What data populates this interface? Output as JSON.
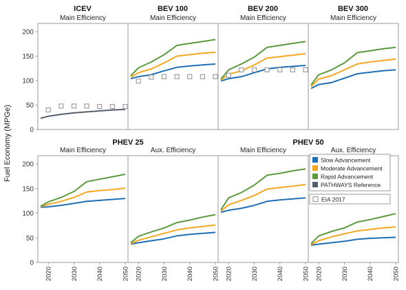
{
  "y_axis_label": "Fuel Economy (MPGe)",
  "colors": {
    "slow": "#1f6fb4",
    "moderate": "#f5a623",
    "rapid": "#5b9a3c",
    "pathways": "#555f6b",
    "eia": "#9e9e9e",
    "border": "#9a9a9a",
    "tick": "#333333"
  },
  "legend": {
    "items": [
      {
        "key": "slow",
        "label": "Slow Advancement"
      },
      {
        "key": "moderate",
        "label": "Moderate Advancement"
      },
      {
        "key": "rapid",
        "label": "Rapid Advancement"
      },
      {
        "key": "pathways",
        "label": "PATHWAYS Reference"
      }
    ],
    "eia_label": "EIA 2017"
  },
  "chart_data": [
    {
      "type": "line",
      "group": "ICEV",
      "subtitle": "Main Efficiency",
      "x": [
        2017,
        2020,
        2025,
        2030,
        2035,
        2040,
        2045,
        2050
      ],
      "ylim": [
        0,
        200
      ],
      "yticks": [
        0,
        50,
        100,
        150,
        200
      ],
      "xticks": [
        2020,
        2030,
        2040,
        2050
      ],
      "series": [
        {
          "key": "pathways",
          "values": [
            23,
            27,
            31,
            34,
            36,
            38,
            40,
            41
          ]
        }
      ],
      "eia": {
        "x": [
          2020,
          2025,
          2030,
          2035,
          2040,
          2045,
          2050
        ],
        "values": [
          40,
          48,
          48,
          48,
          47,
          47,
          47
        ]
      }
    },
    {
      "type": "line",
      "group": "BEV 100",
      "subtitle": "Main Efficiency",
      "x": [
        2017,
        2020,
        2025,
        2030,
        2035,
        2040,
        2045,
        2050
      ],
      "ylim": [
        0,
        200
      ],
      "yticks": [
        0,
        50,
        100,
        150,
        200
      ],
      "xticks": [
        2020,
        2030,
        2040,
        2050
      ],
      "series": [
        {
          "key": "slow",
          "values": [
            104,
            108,
            112,
            120,
            127,
            130,
            132,
            134
          ]
        },
        {
          "key": "moderate",
          "values": [
            107,
            116,
            124,
            136,
            150,
            153,
            156,
            158
          ]
        },
        {
          "key": "rapid",
          "values": [
            110,
            126,
            138,
            153,
            172,
            176,
            180,
            184
          ]
        }
      ],
      "eia": {
        "x": [
          2020,
          2025,
          2030,
          2035,
          2040,
          2045,
          2050
        ],
        "values": [
          99,
          107,
          108,
          108,
          108,
          108,
          108
        ]
      }
    },
    {
      "type": "line",
      "group": "BEV 200",
      "subtitle": "Main Efficiency",
      "x": [
        2017,
        2020,
        2025,
        2030,
        2035,
        2040,
        2045,
        2050
      ],
      "ylim": [
        0,
        200
      ],
      "yticks": [
        0,
        50,
        100,
        150,
        200
      ],
      "xticks": [
        2020,
        2030,
        2040,
        2050
      ],
      "series": [
        {
          "key": "slow",
          "values": [
            99,
            104,
            108,
            116,
            124,
            127,
            129,
            131
          ]
        },
        {
          "key": "moderate",
          "values": [
            101,
            113,
            120,
            132,
            146,
            149,
            152,
            155
          ]
        },
        {
          "key": "rapid",
          "values": [
            103,
            122,
            134,
            148,
            168,
            172,
            176,
            180
          ]
        }
      ],
      "eia": {
        "x": [
          2020,
          2025,
          2030,
          2035,
          2040,
          2045,
          2050
        ],
        "values": [
          111,
          122,
          122,
          122,
          122,
          122,
          122
        ]
      }
    },
    {
      "type": "line",
      "group": "BEV 300",
      "subtitle": "Main Efficiency",
      "x": [
        2017,
        2020,
        2025,
        2030,
        2035,
        2040,
        2045,
        2050
      ],
      "ylim": [
        0,
        200
      ],
      "yticks": [
        0,
        50,
        100,
        150,
        200
      ],
      "xticks": [
        2020,
        2030,
        2040,
        2050
      ],
      "series": [
        {
          "key": "slow",
          "values": [
            84,
            92,
            96,
            105,
            114,
            117,
            120,
            122
          ]
        },
        {
          "key": "moderate",
          "values": [
            88,
            103,
            110,
            122,
            134,
            138,
            141,
            144
          ]
        },
        {
          "key": "rapid",
          "values": [
            91,
            112,
            122,
            136,
            157,
            161,
            165,
            168
          ]
        }
      ]
    },
    {
      "type": "line",
      "group": "PHEV 25",
      "subtitle": "Main Efficiency",
      "x": [
        2017,
        2020,
        2025,
        2030,
        2035,
        2040,
        2045,
        2050
      ],
      "ylim": [
        0,
        200
      ],
      "yticks": [
        0,
        50,
        100,
        150,
        200
      ],
      "xticks": [
        2020,
        2030,
        2040,
        2050
      ],
      "series": [
        {
          "key": "slow",
          "values": [
            112,
            113,
            116,
            120,
            124,
            126,
            128,
            130
          ]
        },
        {
          "key": "moderate",
          "values": [
            113,
            118,
            124,
            132,
            143,
            146,
            148,
            151
          ]
        },
        {
          "key": "rapid",
          "values": [
            114,
            123,
            132,
            144,
            164,
            169,
            174,
            179
          ]
        }
      ]
    },
    {
      "type": "line",
      "group": "PHEV 25",
      "subtitle": "Aux. Efficiency",
      "x": [
        2017,
        2020,
        2025,
        2030,
        2035,
        2040,
        2045,
        2050
      ],
      "ylim": [
        0,
        200
      ],
      "yticks": [
        0,
        50,
        100,
        150,
        200
      ],
      "xticks": [
        2020,
        2030,
        2040,
        2050
      ],
      "series": [
        {
          "key": "slow",
          "values": [
            37,
            40,
            44,
            48,
            54,
            57,
            59,
            61
          ]
        },
        {
          "key": "moderate",
          "values": [
            38,
            45,
            52,
            59,
            66,
            70,
            73,
            76
          ]
        },
        {
          "key": "rapid",
          "values": [
            40,
            53,
            62,
            70,
            81,
            86,
            92,
            97
          ]
        }
      ]
    },
    {
      "type": "line",
      "group": "PHEV 50",
      "subtitle": "Main Efficiency",
      "x": [
        2017,
        2020,
        2025,
        2030,
        2035,
        2040,
        2045,
        2050
      ],
      "ylim": [
        0,
        200
      ],
      "yticks": [
        0,
        50,
        100,
        150,
        200
      ],
      "xticks": [
        2020,
        2030,
        2040,
        2050
      ],
      "series": [
        {
          "key": "slow",
          "values": [
            102,
            106,
            110,
            116,
            124,
            127,
            129,
            131
          ]
        },
        {
          "key": "moderate",
          "values": [
            104,
            117,
            126,
            136,
            149,
            152,
            155,
            158
          ]
        },
        {
          "key": "rapid",
          "values": [
            107,
            131,
            142,
            157,
            177,
            181,
            186,
            190
          ]
        }
      ]
    },
    {
      "type": "line",
      "group": "PHEV 50",
      "subtitle": "Aux. Efficiency",
      "x": [
        2017,
        2020,
        2025,
        2030,
        2035,
        2040,
        2045,
        2050
      ],
      "ylim": [
        0,
        200
      ],
      "yticks": [
        0,
        50,
        100,
        150,
        200
      ],
      "xticks": [
        2020,
        2030,
        2040,
        2050
      ],
      "series": [
        {
          "key": "slow",
          "values": [
            35,
            37,
            40,
            43,
            47,
            49,
            50,
            51
          ]
        },
        {
          "key": "moderate",
          "values": [
            36,
            44,
            52,
            58,
            64,
            67,
            70,
            72
          ]
        },
        {
          "key": "rapid",
          "values": [
            38,
            54,
            63,
            70,
            82,
            87,
            93,
            99
          ]
        }
      ]
    }
  ]
}
